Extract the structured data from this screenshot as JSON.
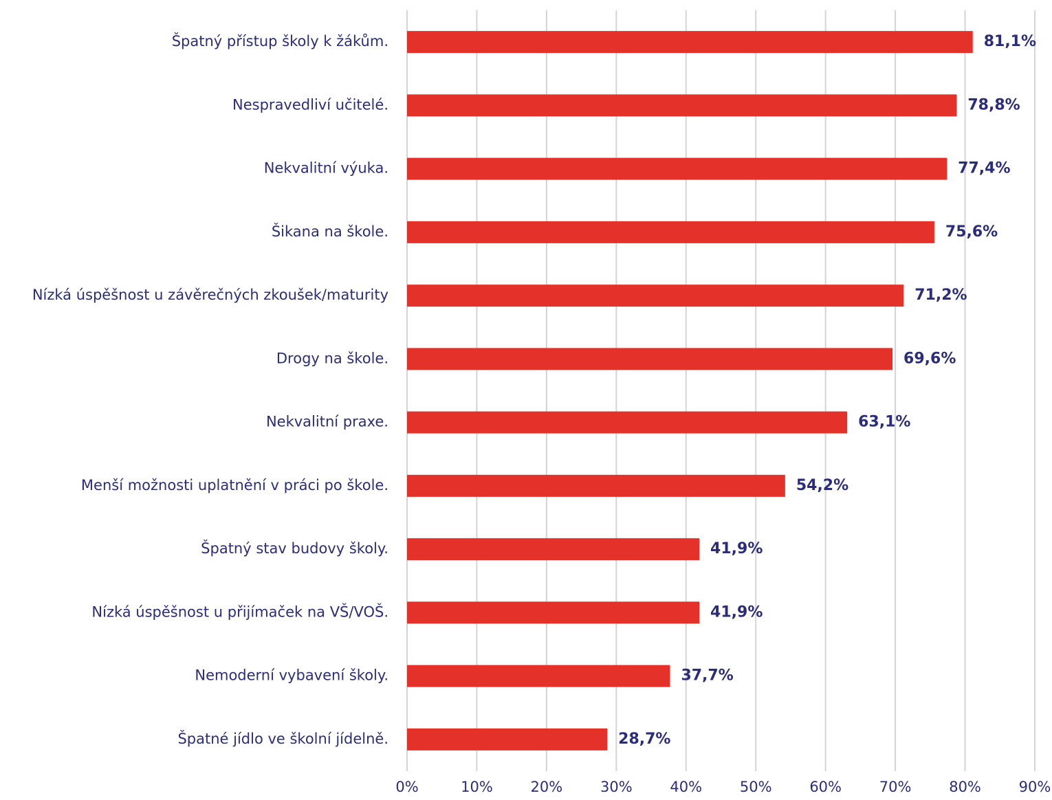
{
  "chart_data": {
    "type": "bar",
    "orientation": "horizontal",
    "categories": [
      "Špatný přístup školy k žákům.",
      "Nespravedliví učitelé.",
      "Nekvalitní výuka.",
      "Šikana na škole.",
      "Nízká úspěšnost u závěrečných zkoušek/maturity",
      "Drogy na škole.",
      "Nekvalitní praxe.",
      "Menší možnosti uplatnění v práci po škole.",
      "Špatný stav budovy školy.",
      "Nízká úspěšnost u přijímaček na VŠ/VOŠ.",
      "Nemoderní vybavení školy.",
      "Špatné jídlo ve školní jídelně."
    ],
    "values": [
      81.1,
      78.8,
      77.4,
      75.6,
      71.2,
      69.6,
      63.1,
      54.2,
      41.9,
      41.9,
      37.7,
      28.7
    ],
    "value_labels": [
      "81,1%",
      "78,8%",
      "77,4%",
      "75,6%",
      "71,2%",
      "69,6%",
      "63,1%",
      "54,2%",
      "41,9%",
      "41,9%",
      "37,7%",
      "28,7%"
    ],
    "color": "#e4322b",
    "xlim": [
      0,
      90
    ],
    "xticks": [
      {
        "value": 0,
        "label": "0%"
      },
      {
        "value": 10,
        "label": "10%"
      },
      {
        "value": 20,
        "label": "20%"
      },
      {
        "value": 30,
        "label": "30%"
      },
      {
        "value": 40,
        "label": "40%"
      },
      {
        "value": 50,
        "label": "50%"
      },
      {
        "value": 60,
        "label": "60%"
      },
      {
        "value": 70,
        "label": "70%"
      },
      {
        "value": 80,
        "label": "80%"
      },
      {
        "value": 90,
        "label": "90%"
      }
    ],
    "grid": true
  }
}
